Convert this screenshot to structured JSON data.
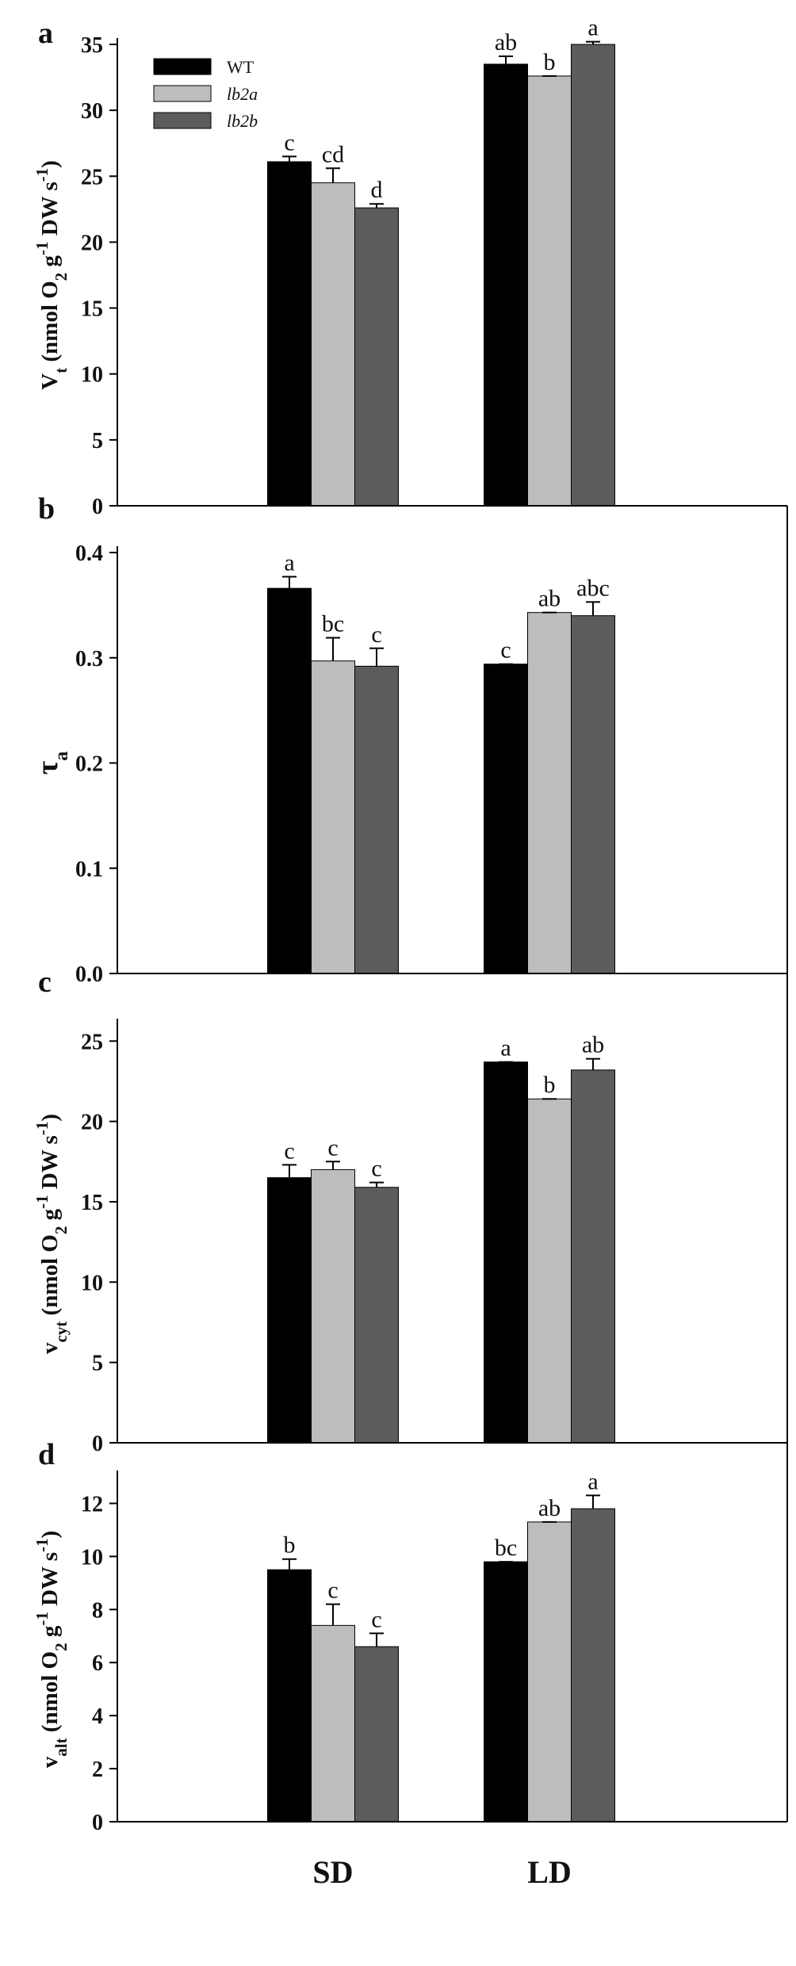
{
  "legend": [
    {
      "label": "WT",
      "color": "#000000"
    },
    {
      "label": "lb2a",
      "color": "#bdbdbd"
    },
    {
      "label": "lb2b",
      "color": "#5c5c5c"
    }
  ],
  "x_groups": [
    "SD",
    "LD"
  ],
  "chart_data": [
    {
      "type": "bar",
      "panel": "a",
      "ylabel": "Vt (nmol O2 g-1 DW s-1)",
      "ylabel_parts": {
        "main": "V",
        "sub": "t",
        "rest1": " (nmol O",
        "sub2": "2",
        "rest2": " g",
        "sup": "-1",
        "rest3": " DW s",
        "sup2": "-1",
        "rest4": ")"
      },
      "ylim": [
        0,
        35
      ],
      "yticks": [
        0,
        5,
        10,
        15,
        20,
        25,
        30,
        35
      ],
      "ytick_labels": [
        "0",
        "5",
        "10",
        "15",
        "20",
        "25",
        "30",
        "35"
      ],
      "categories": [
        "SD",
        "LD"
      ],
      "series": [
        {
          "name": "WT",
          "values": [
            26.1,
            33.5
          ],
          "errors": [
            0.4,
            0.6
          ],
          "sig": [
            "c",
            "ab"
          ]
        },
        {
          "name": "lb2a",
          "values": [
            24.5,
            32.6
          ],
          "errors": [
            1.1,
            0.0
          ],
          "sig": [
            "cd",
            "b"
          ]
        },
        {
          "name": "lb2b",
          "values": [
            22.6,
            35.0
          ],
          "errors": [
            0.3,
            0.2
          ],
          "sig": [
            "d",
            "a"
          ]
        }
      ]
    },
    {
      "type": "bar",
      "panel": "b",
      "ylabel": "τa",
      "ylabel_parts": {
        "main": "τ",
        "sub": "a"
      },
      "ylim": [
        0,
        0.4
      ],
      "yticks": [
        0,
        0.1,
        0.2,
        0.3,
        0.4
      ],
      "ytick_labels": [
        "0.0",
        "0.1",
        "0.2",
        "0.3",
        "0.4"
      ],
      "categories": [
        "SD",
        "LD"
      ],
      "series": [
        {
          "name": "WT",
          "values": [
            0.366,
            0.294
          ],
          "errors": [
            0.011,
            0.0
          ],
          "sig": [
            "a",
            "c"
          ]
        },
        {
          "name": "lb2a",
          "values": [
            0.297,
            0.343
          ],
          "errors": [
            0.022,
            0.0
          ],
          "sig": [
            "bc",
            "ab"
          ]
        },
        {
          "name": "lb2b",
          "values": [
            0.292,
            0.34
          ],
          "errors": [
            0.017,
            0.013
          ],
          "sig": [
            "c",
            "abc"
          ]
        }
      ]
    },
    {
      "type": "bar",
      "panel": "c",
      "ylabel": "vcyt (nmol O2 g-1 DW s-1)",
      "ylabel_parts": {
        "main": "v",
        "sub": "cyt",
        "rest1": " (nmol O",
        "sub2": "2",
        "rest2": " g",
        "sup": "-1",
        "rest3": " DW s",
        "sup2": "-1",
        "rest4": ")"
      },
      "ylim": [
        0,
        26
      ],
      "yticks": [
        0,
        5,
        10,
        15,
        20,
        25
      ],
      "ytick_labels": [
        "0",
        "5",
        "10",
        "15",
        "20",
        "25"
      ],
      "categories": [
        "SD",
        "LD"
      ],
      "series": [
        {
          "name": "WT",
          "values": [
            16.5,
            23.7
          ],
          "errors": [
            0.8,
            0.0
          ],
          "sig": [
            "c",
            "a"
          ]
        },
        {
          "name": "lb2a",
          "values": [
            17.0,
            21.4
          ],
          "errors": [
            0.5,
            0.0
          ],
          "sig": [
            "c",
            "b"
          ]
        },
        {
          "name": "lb2b",
          "values": [
            15.9,
            23.2
          ],
          "errors": [
            0.3,
            0.7
          ],
          "sig": [
            "c",
            "ab"
          ]
        }
      ]
    },
    {
      "type": "bar",
      "panel": "d",
      "ylabel": "valt (nmol O2 g-1 DW s-1)",
      "ylabel_parts": {
        "main": "v",
        "sub": "alt",
        "rest1": " (nmol O",
        "sub2": "2",
        "rest2": " g",
        "sup": "-1",
        "rest3": " DW s",
        "sup2": "-1",
        "rest4": ")"
      },
      "ylim": [
        0,
        13
      ],
      "yticks": [
        0,
        2,
        4,
        6,
        8,
        10,
        12
      ],
      "ytick_labels": [
        "0",
        "2",
        "4",
        "6",
        "8",
        "10",
        "12"
      ],
      "categories": [
        "SD",
        "LD"
      ],
      "series": [
        {
          "name": "WT",
          "values": [
            9.5,
            9.8
          ],
          "errors": [
            0.4,
            0.0
          ],
          "sig": [
            "b",
            "bc"
          ]
        },
        {
          "name": "lb2a",
          "values": [
            7.4,
            11.3
          ],
          "errors": [
            0.8,
            0.0
          ],
          "sig": [
            "c",
            "ab"
          ]
        },
        {
          "name": "lb2b",
          "values": [
            6.6,
            11.8
          ],
          "errors": [
            0.5,
            0.5
          ],
          "sig": [
            "c",
            "a"
          ]
        }
      ]
    }
  ]
}
